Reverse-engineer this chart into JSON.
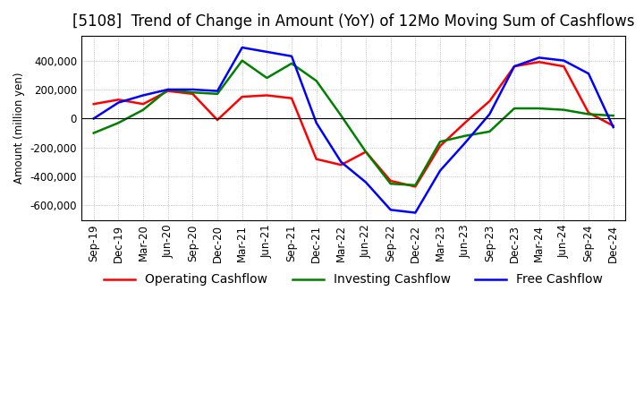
{
  "title": "[5108]  Trend of Change in Amount (YoY) of 12Mo Moving Sum of Cashflows",
  "ylabel": "Amount (million yen)",
  "x_labels": [
    "Sep-19",
    "Dec-19",
    "Mar-20",
    "Jun-20",
    "Sep-20",
    "Dec-20",
    "Mar-21",
    "Jun-21",
    "Sep-21",
    "Dec-21",
    "Mar-22",
    "Jun-22",
    "Sep-22",
    "Dec-22",
    "Mar-23",
    "Jun-23",
    "Sep-23",
    "Dec-23",
    "Mar-24",
    "Jun-24",
    "Sep-24",
    "Dec-24"
  ],
  "operating": [
    100000,
    130000,
    100000,
    190000,
    170000,
    -10000,
    150000,
    160000,
    140000,
    -280000,
    -320000,
    -230000,
    -430000,
    -470000,
    -190000,
    -30000,
    120000,
    360000,
    390000,
    360000,
    40000,
    -50000
  ],
  "investing": [
    -100000,
    -30000,
    60000,
    200000,
    180000,
    170000,
    400000,
    280000,
    380000,
    260000,
    20000,
    -230000,
    -450000,
    -460000,
    -160000,
    -120000,
    -90000,
    70000,
    70000,
    60000,
    30000,
    20000
  ],
  "free": [
    0,
    110000,
    160000,
    200000,
    200000,
    190000,
    490000,
    460000,
    430000,
    -30000,
    -300000,
    -440000,
    -630000,
    -650000,
    -360000,
    -170000,
    30000,
    360000,
    420000,
    400000,
    310000,
    -60000
  ],
  "ylim": [
    -700000,
    570000
  ],
  "yticks": [
    -600000,
    -400000,
    -200000,
    0,
    200000,
    400000
  ],
  "operating_color": "#ff0000",
  "investing_color": "#008000",
  "free_color": "#0000ff",
  "background_color": "#ffffff",
  "plot_bg_color": "#ffffff",
  "grid_color": "#aaaaaa",
  "title_fontsize": 12,
  "axis_fontsize": 8.5,
  "legend_fontsize": 10
}
